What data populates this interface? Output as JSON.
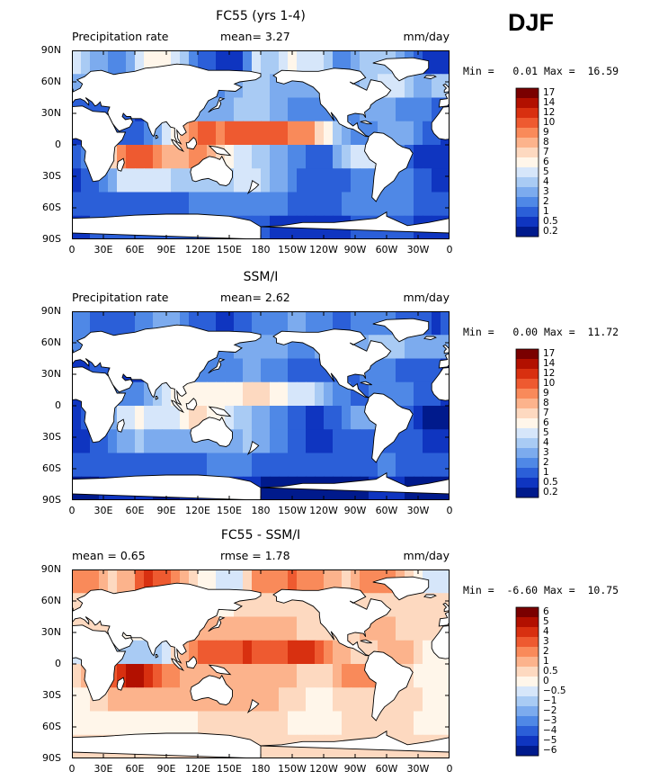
{
  "header": {
    "season": "DJF"
  },
  "chart_data": [
    {
      "type": "heatmap",
      "title": "FC55 (yrs 1-4)",
      "left_label": "Precipitation rate",
      "stat1": "mean=   3.27",
      "stat2": "",
      "units": "mm/day",
      "minmax": "Min =   0.01 Max =  16.59",
      "xticks": [
        "0",
        "30E",
        "60E",
        "90E",
        "120E",
        "150E",
        "180",
        "150W",
        "120W",
        "90W",
        "60W",
        "30W",
        "0"
      ],
      "yticks": [
        "90N",
        "60N",
        "30N",
        "0",
        "30S",
        "60S",
        "90S"
      ],
      "colorbar": [
        "17",
        "14",
        "12",
        "10",
        "9",
        "8",
        "7",
        "6",
        "5",
        "4",
        "3",
        "2",
        "1",
        "0.5",
        "0.2"
      ],
      "colors": [
        "#7a0000",
        "#b21000",
        "#d83010",
        "#ee5a30",
        "#f98a5a",
        "#fcb38c",
        "#fdd9c0",
        "#fff6ea",
        "#d6e6fa",
        "#a9cbf4",
        "#7cabee",
        "#4f88e6",
        "#2b5fd8",
        "#0f35c0",
        "#001a8c"
      ],
      "scale": "precip",
      "field": [
        [
          5.2,
          4.6,
          3.9,
          3.3,
          2.2,
          2.6,
          3.7,
          5.6,
          6.9,
          6.8,
          6.5,
          5.6,
          4.5,
          2.3,
          1.6,
          1.1,
          0.7,
          0.5,
          0.9,
          2.5,
          5.2,
          4.5,
          4.7,
          5.8,
          6.3,
          5.9,
          5.5,
          5.0,
          4.1,
          2.9,
          2.3,
          3.7,
          4.5,
          4.8,
          4.4,
          4.3,
          3.3,
          2.4,
          1.7,
          0.9,
          0.6,
          0.8
        ],
        [
          3.6,
          3.6,
          3.4,
          3.3,
          2.6,
          2.0,
          2.1,
          2.3,
          2.8,
          3.7,
          4.8,
          5.5,
          5.8,
          5.2,
          4.2,
          3.2,
          2.8,
          3.1,
          3.8,
          4.3,
          4.2,
          4.1,
          3.9,
          3.6,
          3.3,
          3.3,
          3.4,
          3.5,
          3.3,
          3.1,
          3.3,
          3.9,
          4.5,
          4.9,
          5.3,
          5.5,
          5.1,
          4.3,
          3.8,
          3.9,
          4.2,
          4.1
        ],
        [
          1.3,
          1.5,
          1.8,
          1.8,
          1.5,
          1.2,
          1.0,
          0.9,
          0.9,
          1.5,
          2.4,
          3.4,
          3.8,
          3.7,
          3.7,
          3.5,
          3.3,
          3.6,
          4.1,
          4.4,
          4.5,
          4.3,
          3.8,
          3.2,
          2.8,
          2.6,
          2.6,
          2.7,
          2.7,
          2.5,
          2.3,
          2.5,
          3.0,
          3.4,
          3.4,
          3.2,
          2.8,
          2.4,
          2.1,
          2.1,
          1.9,
          1.4
        ],
        [
          0.5,
          0.6,
          0.9,
          1.2,
          1.4,
          1.5,
          1.7,
          1.9,
          2.6,
          3.6,
          5.1,
          6.8,
          8.5,
          9.6,
          10.0,
          10.1,
          9.8,
          10.1,
          10.8,
          11.3,
          11.3,
          10.9,
          10.4,
          10.1,
          9.8,
          9.5,
          9.1,
          7.8,
          6.4,
          4.7,
          3.5,
          2.6,
          2.7,
          2.9,
          3.5,
          3.9,
          3.9,
          3.3,
          2.5,
          1.7,
          1.1,
          0.7
        ],
        [
          1.3,
          2.2,
          3.7,
          5.6,
          7.7,
          9.9,
          11.3,
          11.6,
          10.7,
          9.3,
          8.2,
          8.0,
          8.4,
          9.0,
          9.2,
          8.5,
          7.7,
          6.6,
          5.9,
          5.3,
          4.7,
          4.1,
          3.7,
          3.4,
          2.8,
          2.2,
          1.6,
          1.4,
          1.8,
          3.3,
          4.9,
          5.4,
          5.4,
          5.3,
          4.7,
          3.7,
          2.3,
          1.5,
          0.8,
          0.6,
          0.6,
          0.7
        ],
        [
          0.7,
          1.1,
          1.8,
          2.6,
          3.8,
          5.0,
          5.6,
          5.8,
          5.7,
          5.6,
          5.3,
          4.9,
          4.3,
          4.1,
          4.2,
          4.4,
          4.5,
          4.9,
          5.5,
          5.8,
          5.5,
          4.6,
          3.9,
          3.0,
          2.1,
          1.6,
          1.1,
          1.0,
          1.2,
          1.6,
          1.9,
          2.0,
          2.2,
          2.4,
          2.6,
          2.6,
          2.5,
          2.2,
          1.7,
          1.2,
          0.9,
          0.8
        ],
        [
          1.4,
          1.5,
          1.7,
          1.8,
          1.8,
          1.8,
          1.7,
          1.6,
          1.5,
          1.4,
          1.5,
          1.6,
          1.9,
          2.0,
          2.3,
          2.6,
          2.8,
          2.9,
          2.8,
          2.6,
          2.5,
          2.3,
          2.1,
          2.0,
          1.8,
          1.6,
          1.6,
          1.6,
          1.7,
          1.9,
          2.1,
          2.2,
          2.3,
          2.5,
          2.6,
          2.6,
          2.4,
          2.1,
          1.8,
          1.6,
          1.5,
          1.5
        ],
        [
          0.8,
          0.9,
          1.0,
          1.1,
          1.1,
          1.1,
          1.2,
          1.1,
          1.1,
          1.0,
          1.0,
          1.0,
          1.1,
          1.1,
          1.1,
          1.2,
          1.2,
          1.2,
          1.2,
          1.2,
          1.1,
          1.0,
          0.9,
          0.8,
          0.8,
          0.8,
          0.8,
          0.8,
          0.8,
          0.9,
          0.9,
          1.0,
          1.0,
          1.1,
          1.1,
          1.1,
          1.1,
          1.0,
          0.9,
          0.9,
          0.8,
          0.8
        ]
      ]
    },
    {
      "type": "heatmap",
      "title": "SSM/I",
      "left_label": "Precipitation rate",
      "stat1": "mean=   2.62",
      "stat2": "",
      "units": "mm/day",
      "minmax": "Min =   0.00 Max =  11.72",
      "xticks": [
        "0",
        "30E",
        "60E",
        "90E",
        "120E",
        "150E",
        "180",
        "150W",
        "120W",
        "90W",
        "60W",
        "30W",
        "0"
      ],
      "yticks": [
        "90N",
        "60N",
        "30N",
        "0",
        "30S",
        "60S",
        "90S"
      ],
      "colorbar": [
        "17",
        "14",
        "12",
        "10",
        "9",
        "8",
        "7",
        "6",
        "5",
        "4",
        "3",
        "2",
        "1",
        "0.5",
        "0.2"
      ],
      "colors": [
        "#7a0000",
        "#b21000",
        "#d83010",
        "#ee5a30",
        "#f98a5a",
        "#fcb38c",
        "#fdd9c0",
        "#fff6ea",
        "#d6e6fa",
        "#a9cbf4",
        "#7cabee",
        "#4f88e6",
        "#2b5fd8",
        "#0f35c0",
        "#001a8c"
      ],
      "scale": "precip",
      "field": [
        [
          2.3,
          2.1,
          1.9,
          1.8,
          1.5,
          1.6,
          1.9,
          2.4,
          2.9,
          3.2,
          3.3,
          3.0,
          2.6,
          1.8,
          1.4,
          1.1,
          0.9,
          0.8,
          1.0,
          1.6,
          2.5,
          2.4,
          2.5,
          2.9,
          3.1,
          3.0,
          2.8,
          2.6,
          2.3,
          1.8,
          1.6,
          2.0,
          2.3,
          2.4,
          2.2,
          2.2,
          1.9,
          1.6,
          1.3,
          1.0,
          0.9,
          1.0
        ],
        [
          2.7,
          2.8,
          2.7,
          2.6,
          2.2,
          1.8,
          1.8,
          1.9,
          2.2,
          2.8,
          3.6,
          4.2,
          4.6,
          4.3,
          3.6,
          2.8,
          2.5,
          2.7,
          3.2,
          3.6,
          3.5,
          3.4,
          3.2,
          3.0,
          2.8,
          2.8,
          2.9,
          3.0,
          2.8,
          2.6,
          2.7,
          3.1,
          3.7,
          4.1,
          4.5,
          4.7,
          4.3,
          3.6,
          3.1,
          3.1,
          3.4,
          3.3
        ],
        [
          0.8,
          0.9,
          1.1,
          1.1,
          0.9,
          0.8,
          0.6,
          0.6,
          0.6,
          1.0,
          1.6,
          2.3,
          2.6,
          2.5,
          2.5,
          2.4,
          2.2,
          2.4,
          2.8,
          3.0,
          3.1,
          2.9,
          2.5,
          2.1,
          1.8,
          1.7,
          1.7,
          1.8,
          1.8,
          1.7,
          1.5,
          1.7,
          2.0,
          2.3,
          2.3,
          2.2,
          1.9,
          1.6,
          1.4,
          1.4,
          1.2,
          0.9
        ],
        [
          0.6,
          0.7,
          1.1,
          1.5,
          1.8,
          2.1,
          2.5,
          2.9,
          3.6,
          4.5,
          5.5,
          6.2,
          6.6,
          6.7,
          6.5,
          6.3,
          6.1,
          6.4,
          6.9,
          7.3,
          7.4,
          7.1,
          6.6,
          6.2,
          5.8,
          5.4,
          5.0,
          4.2,
          3.6,
          2.9,
          2.3,
          1.8,
          1.8,
          2.0,
          2.3,
          2.5,
          2.5,
          2.2,
          1.8,
          1.3,
          1.0,
          0.7
        ],
        [
          0.6,
          1.0,
          1.6,
          2.6,
          3.8,
          5.1,
          5.8,
          6.0,
          5.9,
          5.6,
          5.5,
          5.8,
          6.5,
          7.1,
          7.3,
          6.9,
          6.4,
          5.6,
          4.9,
          4.3,
          3.7,
          3.1,
          2.6,
          2.2,
          1.7,
          1.3,
          0.9,
          0.8,
          1.0,
          1.7,
          2.6,
          3.0,
          3.1,
          3.1,
          2.9,
          2.4,
          1.6,
          1.0,
          0.5,
          0.4,
          0.4,
          0.4
        ],
        [
          0.5,
          0.8,
          1.2,
          1.8,
          2.6,
          3.4,
          3.8,
          4.0,
          3.9,
          3.8,
          3.6,
          3.4,
          3.1,
          3.0,
          3.0,
          3.1,
          3.2,
          3.4,
          3.8,
          4.0,
          3.8,
          3.2,
          2.7,
          2.1,
          1.5,
          1.1,
          0.8,
          0.7,
          0.8,
          1.1,
          1.3,
          1.4,
          1.5,
          1.7,
          1.8,
          1.8,
          1.7,
          1.5,
          1.2,
          0.9,
          0.6,
          0.5
        ],
        [
          1.1,
          1.2,
          1.3,
          1.4,
          1.4,
          1.4,
          1.3,
          1.2,
          1.2,
          1.1,
          1.2,
          1.3,
          1.5,
          1.6,
          1.8,
          2.0,
          2.2,
          2.3,
          2.2,
          2.0,
          1.9,
          1.8,
          1.6,
          1.5,
          1.4,
          1.3,
          1.3,
          1.3,
          1.3,
          1.5,
          1.6,
          1.7,
          1.8,
          1.9,
          2.0,
          2.0,
          1.9,
          1.6,
          1.4,
          1.3,
          1.2,
          1.2
        ],
        [
          0.3,
          0.4,
          0.4,
          0.5,
          0.5,
          0.5,
          0.5,
          0.5,
          0.5,
          0.4,
          0.4,
          0.4,
          0.5,
          0.5,
          0.5,
          0.5,
          0.5,
          0.5,
          0.5,
          0.5,
          0.5,
          0.4,
          0.4,
          0.3,
          0.3,
          0.3,
          0.3,
          0.3,
          0.3,
          0.4,
          0.4,
          0.4,
          0.4,
          0.5,
          0.5,
          0.5,
          0.5,
          0.4,
          0.4,
          0.4,
          0.3,
          0.3
        ]
      ]
    },
    {
      "type": "heatmap",
      "title": "FC55 - SSM/I",
      "left_label": "mean =   0.65",
      "stat1": "rmse =   1.78",
      "stat2": "",
      "units": "mm/day",
      "minmax": "Min =  -6.60 Max =  10.75",
      "xticks": [
        "0",
        "30E",
        "60E",
        "90E",
        "120E",
        "150E",
        "180",
        "150W",
        "120W",
        "90W",
        "60W",
        "30W",
        "0"
      ],
      "yticks": [
        "90N",
        "60N",
        "30N",
        "0",
        "30S",
        "60S",
        "90S"
      ],
      "colorbar": [
        "6",
        "5",
        "4",
        "3",
        "2",
        "1",
        "0.5",
        "0",
        "−0.5",
        "−1",
        "−2",
        "−3",
        "−4",
        "−5",
        "−6"
      ],
      "colors": [
        "#7a0000",
        "#b21000",
        "#d83010",
        "#ee5a30",
        "#f98a5a",
        "#fcb38c",
        "#fdd9c0",
        "#fff6ea",
        "#d6e6fa",
        "#a9cbf4",
        "#7cabee",
        "#4f88e6",
        "#2b5fd8",
        "#0f35c0",
        "#001a8c"
      ],
      "scale": "diff",
      "field": [
        [
          2.9,
          2.5,
          2.0,
          1.5,
          0.7,
          1.0,
          1.8,
          3.2,
          4.0,
          3.6,
          3.2,
          2.6,
          1.9,
          0.5,
          0.2,
          0.0,
          -0.2,
          -0.3,
          -0.1,
          0.9,
          2.7,
          2.1,
          2.2,
          2.9,
          3.2,
          2.9,
          2.7,
          2.4,
          1.8,
          1.1,
          0.7,
          1.7,
          2.2,
          2.4,
          2.2,
          2.1,
          1.4,
          0.8,
          0.4,
          -0.1,
          -0.3,
          -0.2
        ],
        [
          0.9,
          0.8,
          0.7,
          0.7,
          0.4,
          0.2,
          0.3,
          0.4,
          0.6,
          0.9,
          1.2,
          1.3,
          1.2,
          0.9,
          0.6,
          0.4,
          0.3,
          0.4,
          0.6,
          0.7,
          0.7,
          0.7,
          0.7,
          0.6,
          0.5,
          0.5,
          0.5,
          0.5,
          0.5,
          0.5,
          0.6,
          0.8,
          0.8,
          0.8,
          0.8,
          0.8,
          0.8,
          0.7,
          0.7,
          0.8,
          0.8,
          0.8
        ],
        [
          0.5,
          0.6,
          0.7,
          0.7,
          0.6,
          0.4,
          0.4,
          0.3,
          0.3,
          0.5,
          0.8,
          1.1,
          1.2,
          1.2,
          1.2,
          1.1,
          1.1,
          1.2,
          1.3,
          1.4,
          1.4,
          1.4,
          1.3,
          1.1,
          1.0,
          0.9,
          0.9,
          0.9,
          0.9,
          0.8,
          0.8,
          0.8,
          1.0,
          1.1,
          1.1,
          1.0,
          0.9,
          0.8,
          0.7,
          0.7,
          0.7,
          0.5
        ],
        [
          -0.1,
          -0.1,
          -0.2,
          -0.3,
          -0.4,
          -0.6,
          -0.8,
          -1.0,
          -1.0,
          -0.9,
          -0.4,
          0.6,
          1.9,
          2.9,
          3.5,
          3.8,
          3.7,
          3.7,
          3.9,
          4.0,
          3.9,
          3.8,
          3.8,
          3.9,
          4.0,
          4.1,
          4.1,
          3.6,
          2.8,
          1.8,
          1.2,
          0.8,
          0.9,
          0.9,
          1.2,
          1.4,
          1.4,
          1.1,
          0.7,
          0.4,
          0.1,
          0.0
        ],
        [
          0.7,
          1.2,
          2.1,
          3.0,
          3.9,
          4.8,
          5.5,
          5.6,
          4.8,
          3.7,
          2.7,
          2.2,
          1.9,
          1.9,
          1.9,
          1.6,
          1.3,
          1.0,
          1.0,
          1.0,
          1.0,
          1.0,
          1.1,
          1.2,
          1.1,
          0.9,
          0.7,
          0.6,
          0.8,
          1.6,
          2.3,
          2.4,
          2.3,
          2.2,
          1.8,
          1.3,
          0.7,
          0.5,
          0.3,
          0.2,
          0.2,
          0.3
        ],
        [
          0.2,
          0.3,
          0.6,
          0.8,
          1.2,
          1.6,
          1.8,
          1.8,
          1.8,
          1.8,
          1.7,
          1.5,
          1.2,
          1.1,
          1.2,
          1.3,
          1.3,
          1.5,
          1.7,
          1.8,
          1.7,
          1.4,
          1.2,
          0.9,
          0.6,
          0.5,
          0.3,
          0.3,
          0.4,
          0.5,
          0.6,
          0.6,
          0.7,
          0.7,
          0.8,
          0.8,
          0.8,
          0.7,
          0.5,
          0.3,
          0.3,
          0.3
        ],
        [
          0.3,
          0.3,
          0.4,
          0.4,
          0.4,
          0.4,
          0.4,
          0.4,
          0.3,
          0.3,
          0.3,
          0.3,
          0.4,
          0.4,
          0.5,
          0.6,
          0.6,
          0.6,
          0.6,
          0.6,
          0.6,
          0.5,
          0.5,
          0.5,
          0.4,
          0.3,
          0.3,
          0.3,
          0.4,
          0.4,
          0.5,
          0.5,
          0.5,
          0.6,
          0.6,
          0.6,
          0.5,
          0.5,
          0.4,
          0.3,
          0.3,
          0.3
        ],
        [
          0.5,
          0.5,
          0.6,
          0.6,
          0.6,
          0.6,
          0.7,
          0.6,
          0.6,
          0.6,
          0.6,
          0.6,
          0.6,
          0.6,
          0.6,
          0.7,
          0.7,
          0.7,
          0.7,
          0.7,
          0.6,
          0.6,
          0.5,
          0.5,
          0.5,
          0.5,
          0.5,
          0.5,
          0.5,
          0.5,
          0.5,
          0.6,
          0.6,
          0.6,
          0.6,
          0.6,
          0.6,
          0.6,
          0.5,
          0.5,
          0.5,
          0.5
        ]
      ]
    }
  ]
}
